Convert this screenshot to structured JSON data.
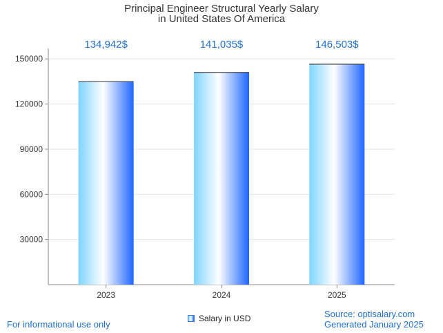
{
  "title_line1": "Principal Engineer Structural Yearly Salary",
  "title_line2": "in United States Of America",
  "footer": {
    "left": "For informational use only",
    "source": "Source: optisalary.com",
    "generated": "Generated January 2025"
  },
  "legend": {
    "label": "Salary in USD"
  },
  "colors": {
    "accent": "#1f6fcf",
    "bar_light": "#7fd4ff",
    "bar_dark": "#1e66ff"
  },
  "chart_data": {
    "type": "bar",
    "categories": [
      "2023",
      "2024",
      "2025"
    ],
    "values": [
      134942,
      141035,
      146503
    ],
    "data_labels": [
      "134,942$",
      "141,035$",
      "146,503$"
    ],
    "series": [
      {
        "name": "Salary in USD",
        "values": [
          134942,
          141035,
          146503
        ]
      }
    ],
    "ylim": [
      0,
      157000
    ],
    "yticks": [
      30000,
      60000,
      90000,
      120000,
      150000
    ],
    "grid": true,
    "legend_position": "bottom"
  }
}
